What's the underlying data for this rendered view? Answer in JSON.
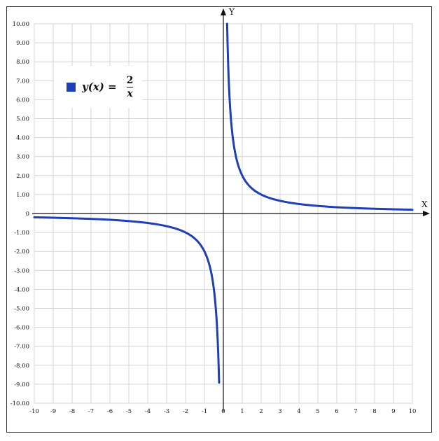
{
  "chart_data": {
    "type": "line",
    "legend": {
      "lhs": "y(x) =",
      "numerator": "2",
      "denominator": "x",
      "placement": "top-left",
      "color": "#1f3fb5"
    },
    "x_axis_label": "X",
    "y_axis_label": "Y",
    "xlim": [
      -10,
      10
    ],
    "ylim": [
      -10,
      10
    ],
    "grid": true,
    "x_ticks": [
      -10,
      -9,
      -8,
      -7,
      -6,
      -5,
      -4,
      -3,
      -2,
      -1,
      0,
      1,
      2,
      3,
      4,
      5,
      6,
      7,
      8,
      9,
      10
    ],
    "x_tick_labels": [
      "-10",
      "-9",
      "-8",
      "-7",
      "-6",
      "-5",
      "-4",
      "-3",
      "-2",
      "-1",
      "0",
      "1",
      "2",
      "3",
      "4",
      "5",
      "6",
      "7",
      "8",
      "9",
      "10"
    ],
    "y_ticks": [
      10,
      9,
      8,
      7,
      6,
      5,
      4,
      3,
      2,
      1,
      0,
      -1,
      -2,
      -3,
      -4,
      -5,
      -6,
      -7,
      -8,
      -9,
      -10
    ],
    "y_tick_labels": [
      "10.00",
      "9.00",
      "8.00",
      "7.00",
      "6.00",
      "5.00",
      "4.00",
      "3.00",
      "2.00",
      "1.00",
      "0",
      "-1.00",
      "-2.00",
      "-3.00",
      "-4.00",
      "-5.00",
      "-6.00",
      "-7.00",
      "-8.00",
      "-9.00",
      "-10.00"
    ],
    "series": [
      {
        "color": "#1f3fb5",
        "branches": [
          {
            "x": [
              -10,
              -8,
              -6,
              -5,
              -4,
              -3,
              -2.5,
              -2,
              -1.5,
              -1,
              -0.8,
              -0.6,
              -0.5,
              -0.4,
              -0.3,
              -0.2
            ],
            "y": [
              -0.2,
              -0.25,
              -0.33,
              -0.4,
              -0.5,
              -0.67,
              -0.8,
              -1,
              -1.33,
              -2,
              -2.5,
              -3.33,
              -4,
              -5,
              -6.67,
              -10
            ]
          },
          {
            "x": [
              0.2,
              0.3,
              0.4,
              0.5,
              0.6,
              0.8,
              1,
              1.5,
              2,
              2.5,
              3,
              4,
              5,
              6,
              8,
              10
            ],
            "y": [
              10,
              6.67,
              5,
              4,
              3.33,
              2.5,
              2,
              1.33,
              1,
              0.8,
              0.67,
              0.5,
              0.4,
              0.33,
              0.25,
              0.2
            ]
          }
        ]
      }
    ]
  }
}
